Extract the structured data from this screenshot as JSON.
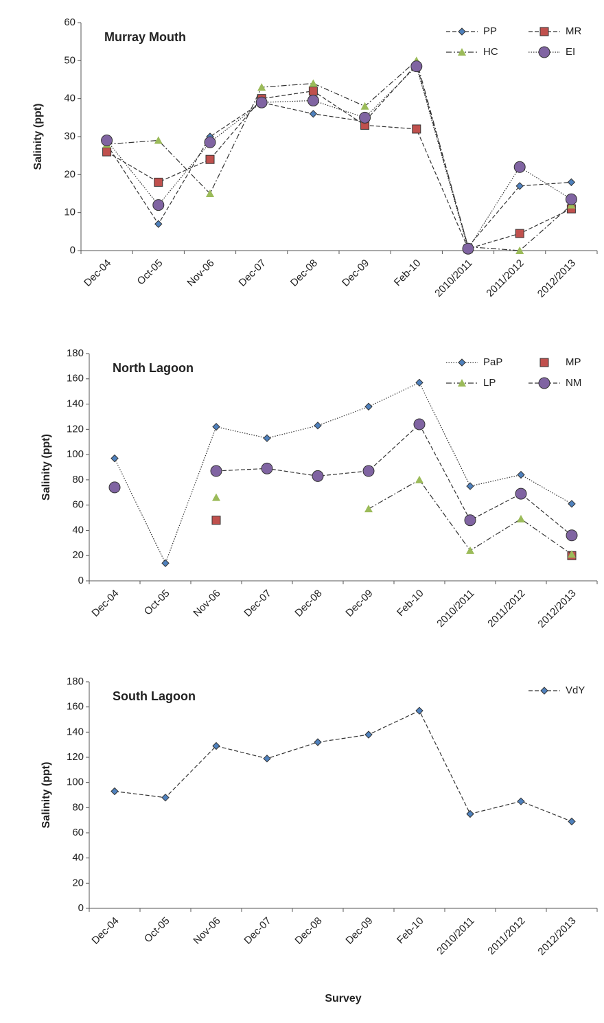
{
  "chart_data": [
    {
      "type": "line",
      "title": "Murray Mouth",
      "y_label": "Salinity (ppt)",
      "legend": "upper right",
      "categories": [
        "Dec-04",
        "Oct-05",
        "Nov-06",
        "Dec-07",
        "Dec-08",
        "Dec-09",
        "Feb-10",
        "2010/2011",
        "2011/2012",
        "2012/2013"
      ],
      "ylim": [
        0,
        60
      ],
      "yticks": [
        0,
        10,
        20,
        30,
        40,
        50,
        60
      ],
      "series": [
        {
          "name": "PP",
          "color": "#4f81bd",
          "marker": "diamond",
          "line_style": "dashed",
          "values": [
            28,
            7,
            30,
            39,
            36,
            34,
            49,
            1,
            17,
            18
          ]
        },
        {
          "name": "MR",
          "color": "#c0504d",
          "marker": "square",
          "line_style": "dashed",
          "values": [
            26,
            18,
            24,
            40,
            42,
            33,
            32,
            0.5,
            4.5,
            11
          ]
        },
        {
          "name": "HC",
          "color": "#9bbb59",
          "marker": "triangle",
          "line_style": "dash-dot",
          "values": [
            28,
            29,
            15,
            43,
            44,
            38,
            50,
            1,
            0,
            12
          ]
        },
        {
          "name": "EI",
          "color": "#8064a2",
          "marker": "circle",
          "line_style": "dotted",
          "values": [
            29,
            12,
            28.5,
            39,
            39.5,
            35,
            48.5,
            0.5,
            22,
            13.5
          ]
        }
      ]
    },
    {
      "type": "line",
      "title": "North Lagoon",
      "y_label": "Salinity (ppt)",
      "legend": "upper right",
      "categories": [
        "Dec-04",
        "Oct-05",
        "Nov-06",
        "Dec-07",
        "Dec-08",
        "Dec-09",
        "Feb-10",
        "2010/2011",
        "2011/2012",
        "2012/2013"
      ],
      "ylim": [
        0,
        180
      ],
      "yticks": [
        0,
        20,
        40,
        60,
        80,
        100,
        120,
        140,
        160,
        180
      ],
      "series": [
        {
          "name": "PaP",
          "color": "#4f81bd",
          "marker": "diamond",
          "line_style": "dotted",
          "values": [
            97,
            14,
            122,
            113,
            123,
            138,
            157,
            75,
            84,
            61
          ]
        },
        {
          "name": "MP",
          "color": "#c0504d",
          "marker": "square",
          "line_style": "none",
          "values": [
            null,
            null,
            48,
            null,
            null,
            null,
            null,
            null,
            null,
            20
          ]
        },
        {
          "name": "LP",
          "color": "#9bbb59",
          "marker": "triangle",
          "line_style": "dash-dot",
          "values": [
            null,
            null,
            66,
            null,
            null,
            57,
            80,
            24,
            49,
            21
          ]
        },
        {
          "name": "NM",
          "color": "#8064a2",
          "marker": "circle",
          "line_style": "dashed",
          "values": [
            74,
            null,
            87,
            89,
            83,
            87,
            124,
            48,
            69,
            36
          ]
        }
      ]
    },
    {
      "type": "line",
      "title": "South Lagoon",
      "y_label": "Salinity (ppt)",
      "x_label": "Survey",
      "legend": "upper right",
      "categories": [
        "Dec-04",
        "Oct-05",
        "Nov-06",
        "Dec-07",
        "Dec-08",
        "Dec-09",
        "Feb-10",
        "2010/2011",
        "2011/2012",
        "2012/2013"
      ],
      "ylim": [
        0,
        180
      ],
      "yticks": [
        0,
        20,
        40,
        60,
        80,
        100,
        120,
        140,
        160,
        180
      ],
      "series": [
        {
          "name": "VdY",
          "color": "#4f81bd",
          "marker": "diamond",
          "line_style": "dashed",
          "values": [
            93,
            88,
            129,
            119,
            132,
            138,
            157,
            75,
            85,
            69
          ]
        }
      ]
    }
  ]
}
